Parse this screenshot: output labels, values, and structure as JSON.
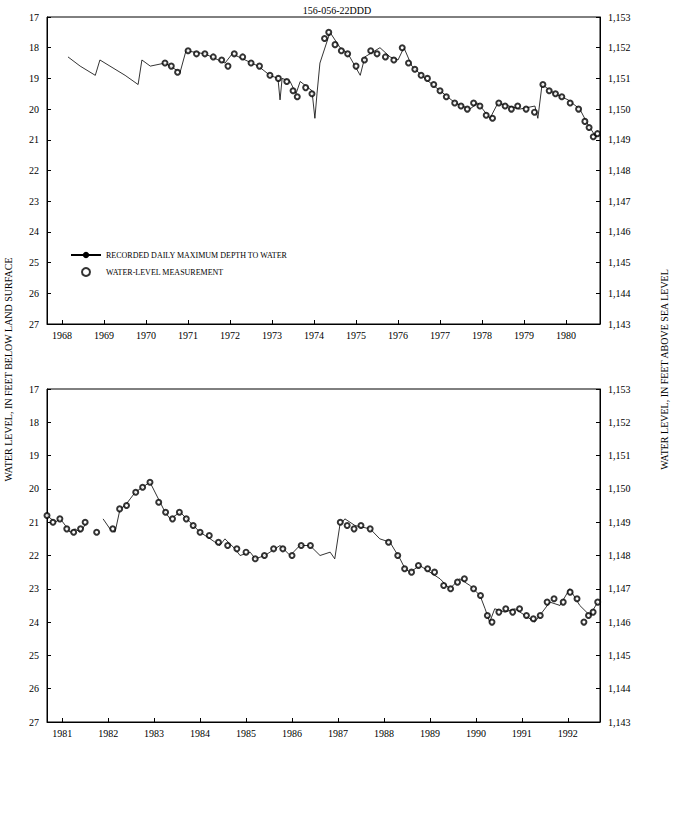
{
  "chart_data": [
    {
      "type": "line",
      "title": "156-056-22DDD",
      "ylabel": "WATER LEVEL, IN FEET BELOW LAND SURFACE",
      "y2label": "WATER LEVEL, IN FEET ABOVE SEA LEVEL",
      "xlim": [
        1968.14,
        1981.31
      ],
      "xticks": [
        {
          "value": 1968.5,
          "label": "1968"
        },
        {
          "value": 1969.5,
          "label": "1969"
        },
        {
          "value": 1970.5,
          "label": "1970"
        },
        {
          "value": 1971.5,
          "label": "1971"
        },
        {
          "value": 1972.5,
          "label": "1972"
        },
        {
          "value": 1973.5,
          "label": "1973"
        },
        {
          "value": 1974.5,
          "label": "1974"
        },
        {
          "value": 1975.5,
          "label": "1975"
        },
        {
          "value": 1976.5,
          "label": "1976"
        },
        {
          "value": 1977.5,
          "label": "1977"
        },
        {
          "value": 1978.5,
          "label": "1978"
        },
        {
          "value": 1979.5,
          "label": "1979"
        },
        {
          "value": 1980.5,
          "label": "1980"
        }
      ],
      "ylim": [
        27,
        17
      ],
      "yticks": [
        17,
        18,
        19,
        20,
        21,
        22,
        23,
        24,
        25,
        26,
        27
      ],
      "y2lim": [
        1143,
        1153
      ],
      "y2ticks": [
        {
          "value": 1153,
          "label": "1,153"
        },
        {
          "value": 1152,
          "label": "1,152"
        },
        {
          "value": 1151,
          "label": "1,151"
        },
        {
          "value": 1150,
          "label": "1,150"
        },
        {
          "value": 1149,
          "label": "1,149"
        },
        {
          "value": 1148,
          "label": "1,148"
        },
        {
          "value": 1147,
          "label": "1,147"
        },
        {
          "value": 1146,
          "label": "1,146"
        },
        {
          "value": 1145,
          "label": "1,145"
        },
        {
          "value": 1144,
          "label": "1,144"
        },
        {
          "value": 1143,
          "label": "1,143"
        }
      ],
      "grid": false,
      "legend": "lower left",
      "series": [
        {
          "name": "RECORDED DAILY MAXIMUM DEPTH TO WATER",
          "type": "line",
          "color": "#000000",
          "line_style": "solid",
          "x": [
            1968.64,
            1968.93,
            1969.29,
            1969.4,
            1969.64,
            1970.0,
            1970.31,
            1970.4,
            1970.6,
            1970.95,
            1971.31,
            1971.45,
            1971.9,
            1972.38,
            1972.55,
            1973.17,
            1973.45,
            1973.64,
            1973.69,
            1973.74,
            1973.93,
            1974.07,
            1974.17,
            1974.45,
            1974.52,
            1974.57,
            1974.64,
            1974.88,
            1975.12,
            1975.31,
            1975.6,
            1975.71,
            1976.07,
            1976.31,
            1976.5,
            1976.64,
            1976.83,
            1977.14,
            1977.5,
            1977.86,
            1978.21,
            1978.4,
            1978.69,
            1978.88,
            1979.4,
            1979.76,
            1979.83,
            1979.93,
            1980.24,
            1980.55,
            1980.83,
            1981.02,
            1981.21,
            1981.31
          ],
          "values": [
            18.3,
            18.6,
            18.9,
            18.4,
            18.6,
            18.9,
            19.2,
            18.4,
            18.6,
            18.5,
            18.8,
            18.1,
            18.2,
            18.5,
            18.2,
            18.6,
            18.9,
            19.0,
            19.7,
            19.0,
            19.1,
            19.5,
            19.1,
            19.4,
            20.3,
            19.5,
            18.5,
            17.5,
            18.0,
            18.2,
            18.9,
            18.3,
            18.0,
            18.3,
            18.4,
            18.0,
            18.6,
            19.0,
            19.4,
            19.8,
            20.0,
            19.8,
            20.3,
            19.8,
            20.0,
            19.9,
            20.3,
            19.2,
            19.5,
            19.7,
            20.0,
            20.5,
            20.9,
            20.8
          ]
        },
        {
          "name": "WATER-LEVEL MEASUREMENT",
          "type": "scatter",
          "color": "#000000",
          "marker": "open circle",
          "x": [
            1970.95,
            1971.1,
            1971.25,
            1971.5,
            1971.7,
            1971.9,
            1972.1,
            1972.3,
            1972.45,
            1972.6,
            1972.8,
            1973.0,
            1973.2,
            1973.45,
            1973.65,
            1973.85,
            1974.0,
            1974.1,
            1974.3,
            1974.45,
            1974.75,
            1974.85,
            1975.0,
            1975.15,
            1975.3,
            1975.5,
            1975.7,
            1975.85,
            1976.0,
            1976.2,
            1976.4,
            1976.6,
            1976.75,
            1976.9,
            1977.05,
            1977.2,
            1977.35,
            1977.5,
            1977.65,
            1977.85,
            1978.0,
            1978.15,
            1978.3,
            1978.45,
            1978.6,
            1978.75,
            1978.9,
            1979.05,
            1979.2,
            1979.35,
            1979.55,
            1979.75,
            1979.95,
            1980.1,
            1980.25,
            1980.4,
            1980.6,
            1980.8,
            1980.95,
            1981.05,
            1981.15,
            1981.25
          ],
          "values": [
            18.5,
            18.6,
            18.8,
            18.1,
            18.2,
            18.2,
            18.3,
            18.4,
            18.6,
            18.2,
            18.3,
            18.5,
            18.6,
            18.9,
            19.0,
            19.1,
            19.4,
            19.6,
            19.3,
            19.5,
            17.7,
            17.5,
            17.9,
            18.1,
            18.2,
            18.6,
            18.4,
            18.1,
            18.2,
            18.3,
            18.4,
            18.0,
            18.5,
            18.7,
            18.9,
            19.0,
            19.2,
            19.4,
            19.6,
            19.8,
            19.9,
            20.0,
            19.8,
            19.9,
            20.2,
            20.3,
            19.8,
            19.9,
            20.0,
            19.9,
            20.0,
            20.1,
            19.2,
            19.4,
            19.5,
            19.6,
            19.8,
            20.0,
            20.4,
            20.6,
            20.9,
            20.8
          ]
        }
      ]
    },
    {
      "type": "line",
      "xlim": [
        1981.17,
        1993.2
      ],
      "xticks": [
        {
          "value": 1981.5,
          "label": "1981"
        },
        {
          "value": 1982.5,
          "label": "1982"
        },
        {
          "value": 1983.5,
          "label": "1983"
        },
        {
          "value": 1984.5,
          "label": "1984"
        },
        {
          "value": 1985.5,
          "label": "1985"
        },
        {
          "value": 1986.5,
          "label": "1986"
        },
        {
          "value": 1987.5,
          "label": "1987"
        },
        {
          "value": 1988.5,
          "label": "1988"
        },
        {
          "value": 1989.5,
          "label": "1989"
        },
        {
          "value": 1990.5,
          "label": "1990"
        },
        {
          "value": 1991.5,
          "label": "1991"
        },
        {
          "value": 1992.5,
          "label": "1992"
        }
      ],
      "ylim": [
        27,
        17
      ],
      "yticks": [
        17,
        18,
        19,
        20,
        21,
        22,
        23,
        24,
        25,
        26,
        27
      ],
      "y2lim": [
        1143,
        1153
      ],
      "y2ticks": [
        {
          "value": 1153,
          "label": "1,153"
        },
        {
          "value": 1152,
          "label": "1,152"
        },
        {
          "value": 1151,
          "label": "1,151"
        },
        {
          "value": 1150,
          "label": "1,150"
        },
        {
          "value": 1149,
          "label": "1,149"
        },
        {
          "value": 1148,
          "label": "1,148"
        },
        {
          "value": 1147,
          "label": "1,147"
        },
        {
          "value": 1146,
          "label": "1,146"
        },
        {
          "value": 1145,
          "label": "1,145"
        },
        {
          "value": 1144,
          "label": "1,144"
        },
        {
          "value": 1143,
          "label": "1,143"
        }
      ],
      "grid": false,
      "series": [
        {
          "name": "RECORDED DAILY MAXIMUM DEPTH TO WATER",
          "type": "line",
          "color": "#000000",
          "line_style": "solid",
          "x": [
            1981.17,
            1981.35,
            1981.46,
            1981.57,
            1981.67,
            1981.78,
            1981.89,
            1982.04,
            1982.2,
            1982.39,
            1982.54,
            1982.65,
            1982.76,
            1982.87,
            1982.98,
            1983.09,
            1983.3,
            1983.41,
            1983.63,
            1983.74,
            1983.85,
            1984.07,
            1984.28,
            1984.5,
            1984.72,
            1984.93,
            1985.04,
            1985.26,
            1985.37,
            1985.59,
            1985.7,
            1985.91,
            1986.24,
            1986.46,
            1986.67,
            1986.89,
            1987.11,
            1987.33,
            1987.43,
            1987.54,
            1987.65,
            1987.87,
            1988.2,
            1988.41,
            1988.63,
            1988.85,
            1988.96,
            1989.07,
            1989.28,
            1989.5,
            1989.72,
            1989.93,
            1990.15,
            1990.37,
            1990.59,
            1990.7,
            1990.8,
            1990.91,
            1991.13,
            1991.35,
            1991.57,
            1991.78,
            1991.89,
            1992.11,
            1992.33,
            1992.54,
            1992.76,
            1992.98,
            1993.15
          ],
          "values": [
            20.8,
            21.0,
            20.9,
            21.1,
            21.3,
            21.2,
            21.3,
            21.0,
            null,
            20.9,
            21.2,
            21.3,
            20.6,
            20.5,
            20.3,
            20.1,
            19.9,
            19.8,
            20.4,
            20.7,
            20.9,
            20.7,
            21.0,
            21.3,
            21.5,
            21.7,
            21.5,
            21.8,
            22.0,
            21.9,
            22.1,
            22.0,
            21.7,
            22.0,
            21.7,
            21.7,
            22.0,
            21.9,
            22.1,
            21.1,
            20.9,
            21.1,
            21.2,
            21.5,
            21.6,
            22.1,
            22.4,
            22.5,
            22.3,
            22.5,
            22.7,
            23.0,
            22.7,
            22.9,
            23.2,
            23.6,
            24.0,
            23.6,
            23.7,
            23.6,
            23.8,
            24.0,
            23.8,
            23.4,
            23.5,
            23.0,
            23.5,
            23.8,
            23.4
          ]
        },
        {
          "name": "WATER-LEVEL MEASUREMENT",
          "type": "scatter",
          "color": "#000000",
          "marker": "open circle",
          "x": [
            1981.17,
            1981.3,
            1981.45,
            1981.6,
            1981.75,
            1981.9,
            1982.0,
            1982.25,
            1982.6,
            1982.75,
            1982.9,
            1983.1,
            1983.25,
            1983.41,
            1983.6,
            1983.75,
            1983.9,
            1984.05,
            1984.2,
            1984.35,
            1984.5,
            1984.7,
            1984.9,
            1985.1,
            1985.3,
            1985.5,
            1985.7,
            1985.9,
            1986.1,
            1986.3,
            1986.5,
            1986.7,
            1986.9,
            1987.55,
            1987.7,
            1987.85,
            1988.0,
            1988.2,
            1988.6,
            1988.8,
            1988.95,
            1989.1,
            1989.25,
            1989.45,
            1989.6,
            1989.8,
            1989.95,
            1990.1,
            1990.25,
            1990.45,
            1990.6,
            1990.75,
            1990.85,
            1991.0,
            1991.15,
            1991.3,
            1991.45,
            1991.6,
            1991.75,
            1991.9,
            1992.05,
            1992.2,
            1992.4,
            1992.55,
            1992.7,
            1992.85,
            1992.95,
            1993.05,
            1993.15
          ],
          "values": [
            20.8,
            21.0,
            20.9,
            21.2,
            21.3,
            21.2,
            21.0,
            21.3,
            21.2,
            20.6,
            20.5,
            20.1,
            19.95,
            19.8,
            20.4,
            20.7,
            20.9,
            20.7,
            20.9,
            21.1,
            21.3,
            21.4,
            21.6,
            21.7,
            21.8,
            21.9,
            22.1,
            22.0,
            21.8,
            21.8,
            22.0,
            21.7,
            21.7,
            21.0,
            21.1,
            21.2,
            21.1,
            21.2,
            21.6,
            22.0,
            22.4,
            22.5,
            22.3,
            22.4,
            22.5,
            22.9,
            23.0,
            22.8,
            22.7,
            23.0,
            23.2,
            23.8,
            24.0,
            23.7,
            23.6,
            23.7,
            23.6,
            23.8,
            23.9,
            23.8,
            23.4,
            23.3,
            23.4,
            23.1,
            23.3,
            24.0,
            23.8,
            23.7,
            23.4
          ]
        }
      ]
    }
  ]
}
